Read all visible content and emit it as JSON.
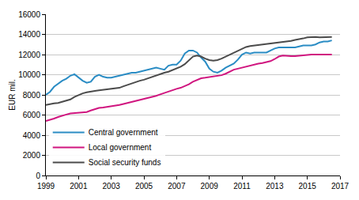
{
  "chart_data": {
    "type": "line",
    "y_label": "EUR mil.",
    "x": [
      1999,
      1999.25,
      1999.5,
      1999.75,
      2000,
      2000.25,
      2000.5,
      2000.75,
      2001,
      2001.25,
      2001.5,
      2001.75,
      2002,
      2002.25,
      2002.5,
      2002.75,
      2003,
      2003.25,
      2003.5,
      2003.75,
      2004,
      2004.25,
      2004.5,
      2004.75,
      2005,
      2005.25,
      2005.5,
      2005.75,
      2006,
      2006.25,
      2006.5,
      2006.75,
      2007,
      2007.25,
      2007.5,
      2007.75,
      2008,
      2008.25,
      2008.5,
      2008.75,
      2009,
      2009.25,
      2009.5,
      2009.75,
      2010,
      2010.25,
      2010.5,
      2010.75,
      2011,
      2011.25,
      2011.5,
      2011.75,
      2012,
      2012.25,
      2012.5,
      2012.75,
      2013,
      2013.25,
      2013.5,
      2013.75,
      2014,
      2014.25,
      2014.5,
      2014.75,
      2015,
      2015.25,
      2015.5,
      2015.75,
      2016,
      2016.25,
      2016.5
    ],
    "series": [
      {
        "name": "Central government",
        "color": "#2a8cc4",
        "values": [
          8000,
          8300,
          8800,
          9100,
          9400,
          9600,
          9900,
          10050,
          9700,
          9400,
          9200,
          9300,
          9800,
          10000,
          9800,
          9700,
          9700,
          9800,
          9900,
          10000,
          10100,
          10200,
          10200,
          10300,
          10400,
          10500,
          10600,
          10700,
          10600,
          10500,
          10900,
          11000,
          11000,
          11400,
          12100,
          12400,
          12400,
          12200,
          11700,
          11300,
          10600,
          10300,
          10200,
          10400,
          10700,
          10900,
          11100,
          11500,
          12000,
          12200,
          12100,
          12200,
          12200,
          12200,
          12200,
          12400,
          12600,
          12700,
          12700,
          12700,
          12700,
          12700,
          12800,
          12900,
          12900,
          12900,
          13000,
          13200,
          13300,
          13300,
          13400
        ]
      },
      {
        "name": "Local government",
        "color": "#d0157f",
        "values": [
          5400,
          5500,
          5650,
          5800,
          5950,
          6050,
          6150,
          6200,
          6200,
          6250,
          6300,
          6450,
          6600,
          6700,
          6750,
          6800,
          6850,
          6900,
          7000,
          7100,
          7200,
          7250,
          7350,
          7450,
          7550,
          7650,
          7750,
          7900,
          8050,
          8200,
          8300,
          8450,
          8600,
          8700,
          8850,
          9050,
          9300,
          9500,
          9650,
          9700,
          9750,
          9800,
          9850,
          9950,
          10100,
          10300,
          10500,
          10600,
          10700,
          10800,
          10950,
          11000,
          11100,
          11150,
          11250,
          11350,
          11550,
          11800,
          11900,
          11850,
          11850,
          11850,
          11900,
          11950,
          11950,
          12000,
          12000,
          12000,
          11950,
          12000,
          12000
        ]
      },
      {
        "name": "Social security funds",
        "color": "#4b4b4b",
        "values": [
          7000,
          7100,
          7150,
          7200,
          7300,
          7400,
          7550,
          7800,
          8000,
          8150,
          8250,
          8350,
          8400,
          8450,
          8500,
          8500,
          8550,
          8600,
          8700,
          8850,
          9000,
          9150,
          9300,
          9400,
          9500,
          9650,
          9800,
          9950,
          10100,
          10200,
          10300,
          10450,
          10600,
          10800,
          11050,
          11400,
          11800,
          11900,
          11800,
          11600,
          11450,
          11400,
          11450,
          11600,
          11800,
          12000,
          12200,
          12400,
          12600,
          12750,
          12850,
          12900,
          12950,
          13000,
          13000,
          13050,
          13150,
          13200,
          13250,
          13300,
          13350,
          13450,
          13500,
          13600,
          13700,
          13750,
          13750,
          13700,
          13700,
          13700,
          13750
        ]
      }
    ],
    "xlim": [
      1999,
      2017
    ],
    "xticks": [
      1999,
      2001,
      2003,
      2005,
      2007,
      2009,
      2011,
      2013,
      2015,
      2017
    ],
    "ylim": [
      0,
      16000
    ],
    "yticks": [
      0,
      2000,
      4000,
      6000,
      8000,
      10000,
      12000,
      14000,
      16000
    ],
    "grid": true,
    "legend": "lower left"
  }
}
